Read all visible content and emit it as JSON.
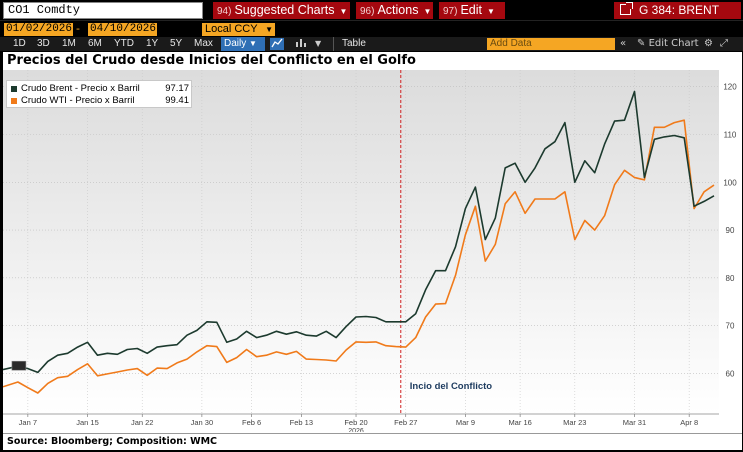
{
  "topbar": {
    "ticker": "CO1 Comdty",
    "menus": [
      {
        "num": "94)",
        "label": "Suggested Charts"
      },
      {
        "num": "96)",
        "label": "Actions"
      },
      {
        "num": "97)",
        "label": "Edit"
      }
    ],
    "right_title": "G 384: BRENT"
  },
  "datebar": {
    "start_date": "01/02/2026",
    "end_date": "04/10/2026",
    "currency": "Local CCY"
  },
  "periodbar": {
    "periods": [
      "1D",
      "3D",
      "1M",
      "6M",
      "YTD",
      "1Y",
      "5Y",
      "Max"
    ],
    "frequency": "Daily",
    "table_label": "Table",
    "add_data_placeholder": "Add Data",
    "edit_chart_label": "Edit Chart"
  },
  "chart_title": "Precios del Crudo desde Inicios del Conflicto en el Golfo",
  "source": "Source: Bloomberg; Composition: WMC",
  "chart_data": {
    "type": "line",
    "title": "Precios del Crudo desde Inicios del Conflicto en el Golfo",
    "xlabel": "",
    "ylabel": "",
    "ylim": [
      51.5,
      123.5
    ],
    "y_ticks": [
      60,
      70,
      80,
      90,
      100,
      110,
      120
    ],
    "x_tick_labels": [
      "Jan 7",
      "Jan 15",
      "Jan 22",
      "Jan 30",
      "Feb 6",
      "Feb 13",
      "Feb 20",
      "Feb 27",
      "Mar 9",
      "Mar 16",
      "Mar 23",
      "Mar 31",
      "Apr 8"
    ],
    "x_tick_index": [
      5,
      17,
      28,
      40,
      50,
      60,
      71,
      81,
      93,
      104,
      115,
      127,
      138
    ],
    "x_year_label": "2026",
    "grid": true,
    "legend_position": "top-left",
    "annotation": {
      "label": "Incio del Conflicto",
      "x_index": 80
    },
    "colors": {
      "brent": "#1c3a2e",
      "wti": "#f07a1a",
      "event_line": "#d02020",
      "annotation_text": "#1c3a5e"
    },
    "series": [
      {
        "name": "Crudo Brent - Precio x Barril",
        "last": "97.17",
        "points": [
          [
            0,
            60.8
          ],
          [
            3,
            61.5
          ],
          [
            5,
            61.0
          ],
          [
            7,
            60.2
          ],
          [
            9,
            62.5
          ],
          [
            11,
            63.8
          ],
          [
            13,
            64.2
          ],
          [
            15,
            65.5
          ],
          [
            17,
            66.5
          ],
          [
            19,
            63.8
          ],
          [
            21,
            64.2
          ],
          [
            23,
            64.0
          ],
          [
            25,
            65.0
          ],
          [
            27,
            65.2
          ],
          [
            29,
            64.2
          ],
          [
            31,
            65.5
          ],
          [
            33,
            65.8
          ],
          [
            35,
            66.0
          ],
          [
            37,
            68.0
          ],
          [
            39,
            69.0
          ],
          [
            41,
            70.8
          ],
          [
            43,
            70.7
          ],
          [
            45,
            66.5
          ],
          [
            47,
            67.2
          ],
          [
            49,
            68.8
          ],
          [
            51,
            67.5
          ],
          [
            53,
            68.0
          ],
          [
            55,
            68.8
          ],
          [
            57,
            68.2
          ],
          [
            59,
            68.7
          ],
          [
            61,
            68.0
          ],
          [
            63,
            67.8
          ],
          [
            65,
            68.8
          ],
          [
            67,
            67.5
          ],
          [
            69,
            69.8
          ],
          [
            71,
            71.8
          ],
          [
            73,
            71.9
          ],
          [
            75,
            71.7
          ],
          [
            77,
            70.8
          ],
          [
            79,
            70.8
          ],
          [
            81,
            70.8
          ],
          [
            83,
            72.5
          ],
          [
            85,
            77.5
          ],
          [
            87,
            81.5
          ],
          [
            89,
            81.5
          ],
          [
            91,
            86.5
          ],
          [
            93,
            94.5
          ],
          [
            95,
            99.0
          ],
          [
            97,
            88.0
          ],
          [
            99,
            92.5
          ],
          [
            101,
            103.0
          ],
          [
            103,
            104.0
          ],
          [
            105,
            100.0
          ],
          [
            107,
            103.0
          ],
          [
            109,
            107.0
          ],
          [
            111,
            108.5
          ],
          [
            113,
            112.5
          ],
          [
            115,
            100.0
          ],
          [
            117,
            104.5
          ],
          [
            119,
            102.0
          ],
          [
            121,
            108.0
          ],
          [
            123,
            112.8
          ],
          [
            125,
            113.0
          ],
          [
            127,
            119.0
          ],
          [
            129,
            101.0
          ],
          [
            131,
            109.0
          ],
          [
            133,
            109.5
          ],
          [
            135,
            109.8
          ],
          [
            137,
            109.3
          ],
          [
            139,
            95.0
          ],
          [
            141,
            96.0
          ],
          [
            143,
            97.17
          ]
        ]
      },
      {
        "name": "Crudo WTI - Precio x Barril",
        "last": "99.41",
        "points": [
          [
            0,
            57.2
          ],
          [
            3,
            58.2
          ],
          [
            5,
            57.0
          ],
          [
            7,
            55.9
          ],
          [
            9,
            57.9
          ],
          [
            11,
            59.1
          ],
          [
            13,
            59.4
          ],
          [
            15,
            60.8
          ],
          [
            17,
            62.0
          ],
          [
            19,
            59.5
          ],
          [
            21,
            59.9
          ],
          [
            23,
            60.3
          ],
          [
            25,
            60.7
          ],
          [
            27,
            61.0
          ],
          [
            29,
            59.6
          ],
          [
            31,
            61.1
          ],
          [
            33,
            61.0
          ],
          [
            35,
            62.2
          ],
          [
            37,
            63.0
          ],
          [
            39,
            64.5
          ],
          [
            41,
            65.8
          ],
          [
            43,
            65.6
          ],
          [
            45,
            62.3
          ],
          [
            47,
            63.3
          ],
          [
            49,
            65.0
          ],
          [
            51,
            63.5
          ],
          [
            53,
            63.8
          ],
          [
            55,
            64.5
          ],
          [
            57,
            64.0
          ],
          [
            59,
            64.6
          ],
          [
            61,
            63.0
          ],
          [
            63,
            62.9
          ],
          [
            65,
            62.8
          ],
          [
            67,
            62.6
          ],
          [
            69,
            64.9
          ],
          [
            71,
            66.6
          ],
          [
            73,
            66.5
          ],
          [
            75,
            66.6
          ],
          [
            77,
            65.8
          ],
          [
            79,
            65.6
          ],
          [
            81,
            65.5
          ],
          [
            83,
            67.5
          ],
          [
            85,
            71.8
          ],
          [
            87,
            74.5
          ],
          [
            89,
            74.6
          ],
          [
            91,
            80.5
          ],
          [
            93,
            89.0
          ],
          [
            95,
            95.0
          ],
          [
            97,
            83.5
          ],
          [
            99,
            87.0
          ],
          [
            101,
            95.5
          ],
          [
            103,
            98.0
          ],
          [
            105,
            93.5
          ],
          [
            107,
            96.5
          ],
          [
            109,
            96.5
          ],
          [
            111,
            96.5
          ],
          [
            113,
            98.0
          ],
          [
            115,
            88.0
          ],
          [
            117,
            92.0
          ],
          [
            119,
            90.0
          ],
          [
            121,
            93.0
          ],
          [
            123,
            99.5
          ],
          [
            125,
            102.5
          ],
          [
            127,
            101.0
          ],
          [
            129,
            100.5
          ],
          [
            131,
            111.5
          ],
          [
            133,
            111.5
          ],
          [
            135,
            112.5
          ],
          [
            137,
            113.0
          ],
          [
            139,
            94.5
          ],
          [
            141,
            98.0
          ],
          [
            143,
            99.41
          ]
        ]
      }
    ]
  }
}
